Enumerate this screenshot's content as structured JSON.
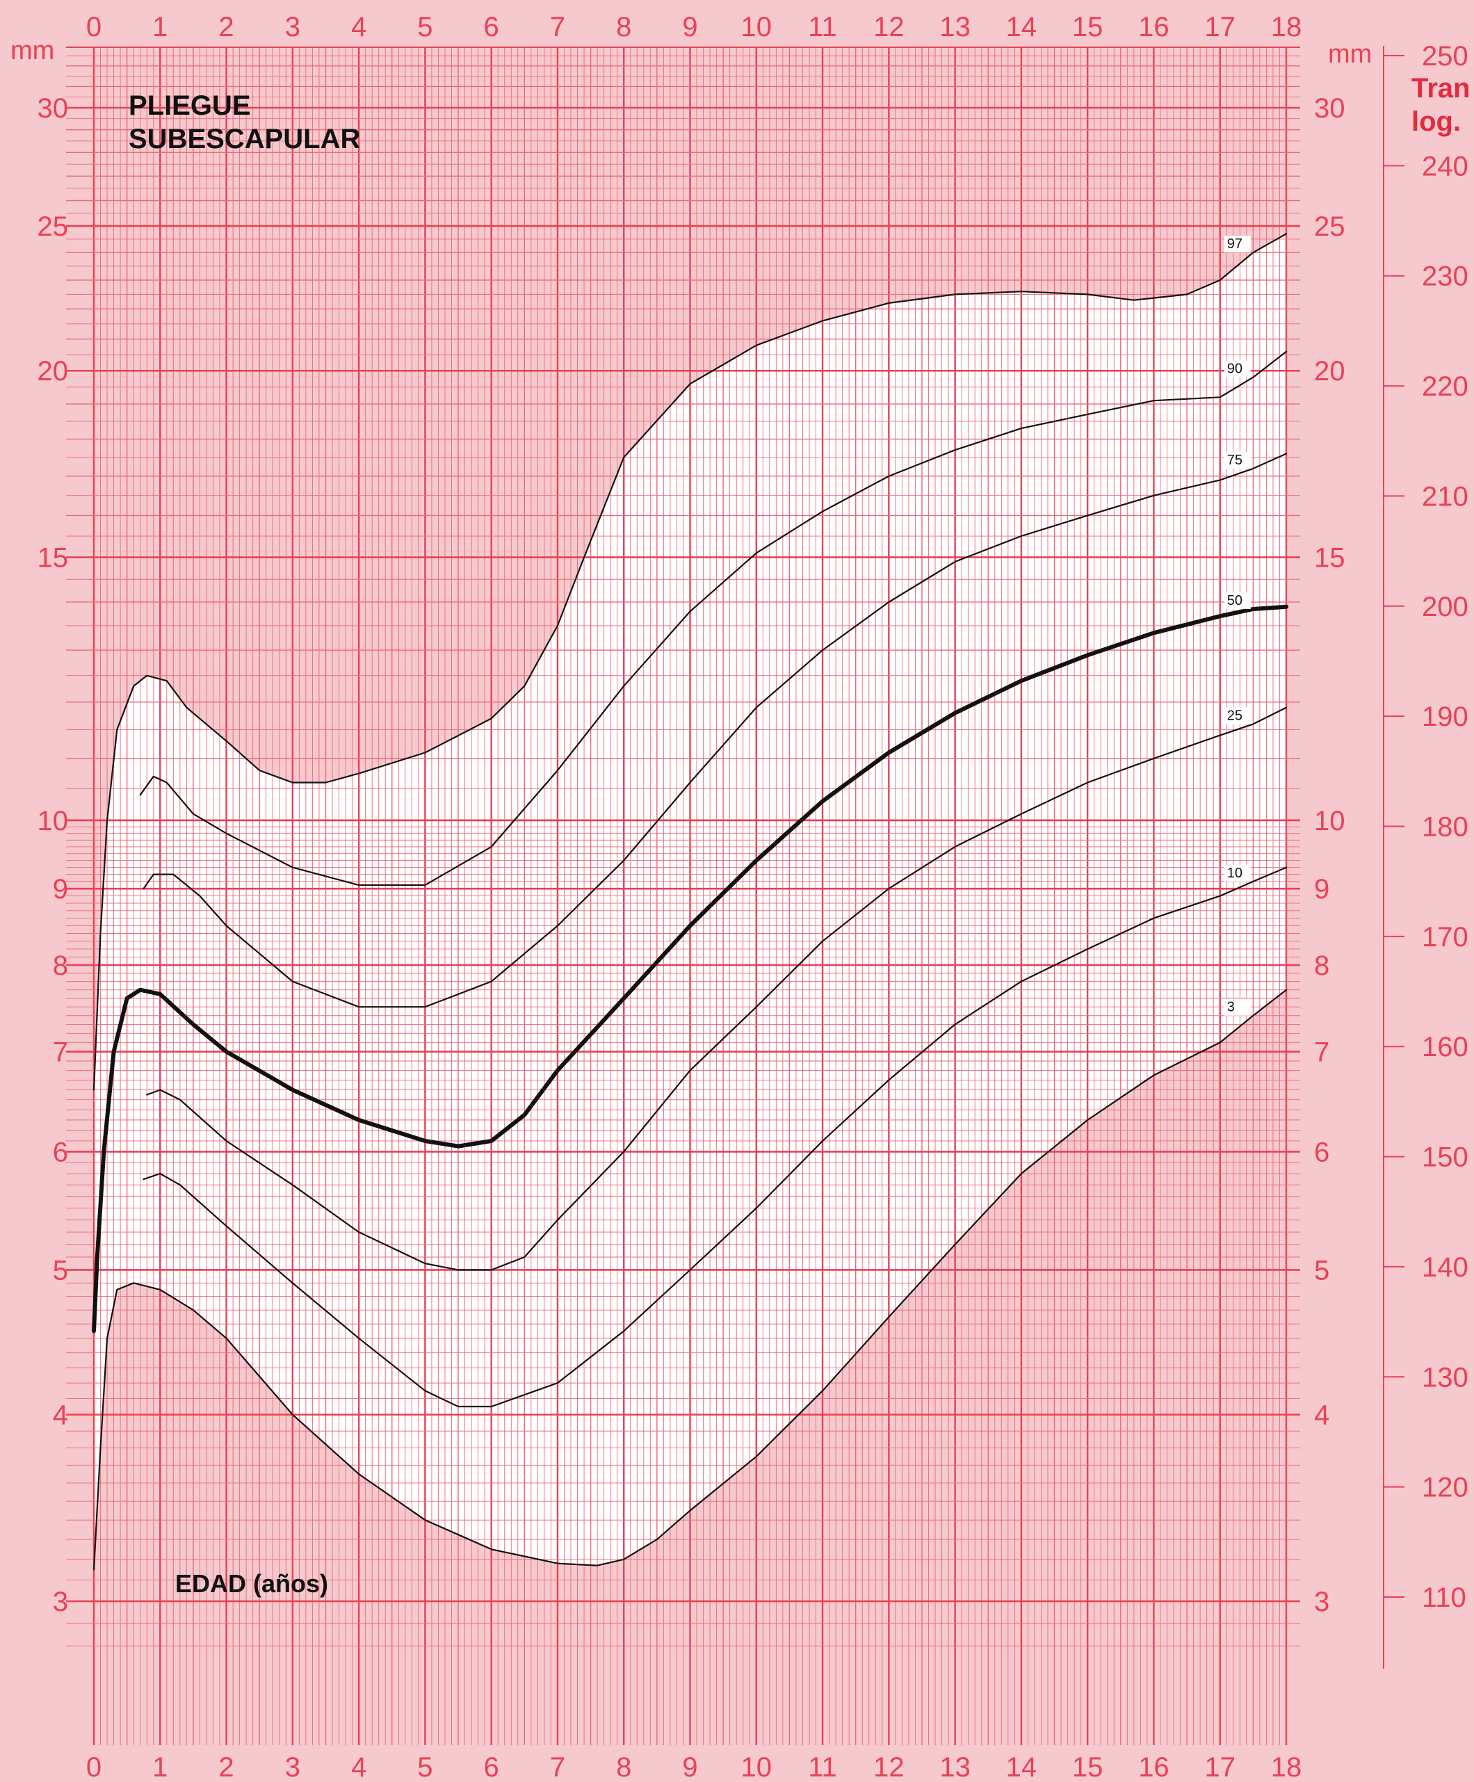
{
  "chart_data": {
    "type": "line",
    "title": "PLIEGUE\nSUBESCAPULAR",
    "xlabel": "EDAD (años)",
    "ylabel": "mm",
    "right_ylabel": "mm",
    "log_title": "Tran\nlog.",
    "y_scale": "log",
    "xlim": [
      0,
      18
    ],
    "ylim": [
      2.7,
      33
    ],
    "x_ticks": [
      "0",
      "1",
      "2",
      "3",
      "4",
      "5",
      "6",
      "7",
      "8",
      "9",
      "10",
      "11",
      "12",
      "13",
      "14",
      "15",
      "16",
      "17",
      "18"
    ],
    "y_ticks": [
      {
        "v": 30,
        "label": "30"
      },
      {
        "v": 25,
        "label": "25"
      },
      {
        "v": 20,
        "label": "20"
      },
      {
        "v": 15,
        "label": "15"
      },
      {
        "v": 10,
        "label": "10"
      },
      {
        "v": 9,
        "label": "9"
      },
      {
        "v": 8,
        "label": "8"
      },
      {
        "v": 7,
        "label": "7"
      },
      {
        "v": 6,
        "label": "6"
      },
      {
        "v": 5,
        "label": "5"
      },
      {
        "v": 4,
        "label": "4"
      },
      {
        "v": 3,
        "label": "3"
      }
    ],
    "log_scale_ticks": [
      {
        "v": 250,
        "label": "250"
      },
      {
        "v": 240,
        "label": "240"
      },
      {
        "v": 230,
        "label": "230"
      },
      {
        "v": 220,
        "label": "220"
      },
      {
        "v": 210,
        "label": "210"
      },
      {
        "v": 200,
        "label": "200"
      },
      {
        "v": 190,
        "label": "190"
      },
      {
        "v": 180,
        "label": "180"
      },
      {
        "v": 170,
        "label": "170"
      },
      {
        "v": 160,
        "label": "160"
      },
      {
        "v": 150,
        "label": "150"
      },
      {
        "v": 140,
        "label": "140"
      },
      {
        "v": 130,
        "label": "130"
      },
      {
        "v": 120,
        "label": "120"
      },
      {
        "v": 110,
        "label": "110"
      }
    ],
    "series": [
      {
        "name": "97",
        "bold": false,
        "points": [
          [
            0,
            6.6
          ],
          [
            0.1,
            8.4
          ],
          [
            0.2,
            10.0
          ],
          [
            0.35,
            11.5
          ],
          [
            0.6,
            12.3
          ],
          [
            0.8,
            12.5
          ],
          [
            1.1,
            12.4
          ],
          [
            1.4,
            11.9
          ],
          [
            2,
            11.3
          ],
          [
            2.5,
            10.8
          ],
          [
            3,
            10.6
          ],
          [
            3.5,
            10.6
          ],
          [
            4,
            10.75
          ],
          [
            5,
            11.1
          ],
          [
            6,
            11.7
          ],
          [
            6.5,
            12.3
          ],
          [
            7,
            13.5
          ],
          [
            7.4,
            15.0
          ],
          [
            8,
            17.5
          ],
          [
            9,
            19.6
          ],
          [
            10,
            20.8
          ],
          [
            11,
            21.6
          ],
          [
            12,
            22.2
          ],
          [
            13,
            22.5
          ],
          [
            14,
            22.6
          ],
          [
            15,
            22.5
          ],
          [
            15.7,
            22.3
          ],
          [
            16.5,
            22.5
          ],
          [
            17,
            23.0
          ],
          [
            17.5,
            24.0
          ],
          [
            18,
            24.7
          ]
        ]
      },
      {
        "name": "90",
        "bold": false,
        "points": [
          [
            0.7,
            10.4
          ],
          [
            0.9,
            10.7
          ],
          [
            1.1,
            10.6
          ],
          [
            1.5,
            10.1
          ],
          [
            2,
            9.8
          ],
          [
            3,
            9.3
          ],
          [
            4,
            9.05
          ],
          [
            5,
            9.05
          ],
          [
            6,
            9.6
          ],
          [
            7,
            10.8
          ],
          [
            8,
            12.3
          ],
          [
            9,
            13.8
          ],
          [
            10,
            15.1
          ],
          [
            11,
            16.1
          ],
          [
            12,
            17.0
          ],
          [
            13,
            17.7
          ],
          [
            14,
            18.3
          ],
          [
            15,
            18.7
          ],
          [
            16,
            19.1
          ],
          [
            17,
            19.2
          ],
          [
            17.5,
            19.8
          ],
          [
            18,
            20.6
          ]
        ]
      },
      {
        "name": "75",
        "bold": false,
        "points": [
          [
            0.75,
            9.0
          ],
          [
            0.9,
            9.2
          ],
          [
            1.2,
            9.2
          ],
          [
            1.6,
            8.9
          ],
          [
            2,
            8.5
          ],
          [
            3,
            7.8
          ],
          [
            4,
            7.5
          ],
          [
            5,
            7.5
          ],
          [
            6,
            7.8
          ],
          [
            7,
            8.5
          ],
          [
            8,
            9.4
          ],
          [
            9,
            10.6
          ],
          [
            10,
            11.9
          ],
          [
            11,
            13.0
          ],
          [
            12,
            14.0
          ],
          [
            13,
            14.9
          ],
          [
            14,
            15.5
          ],
          [
            15,
            16.0
          ],
          [
            16,
            16.5
          ],
          [
            17,
            16.9
          ],
          [
            17.5,
            17.2
          ],
          [
            18,
            17.6
          ]
        ]
      },
      {
        "name": "50",
        "bold": true,
        "points": [
          [
            0,
            4.55
          ],
          [
            0.05,
            5.1
          ],
          [
            0.15,
            6.0
          ],
          [
            0.3,
            7.0
          ],
          [
            0.5,
            7.6
          ],
          [
            0.7,
            7.7
          ],
          [
            1,
            7.65
          ],
          [
            1.5,
            7.3
          ],
          [
            2,
            7.0
          ],
          [
            3,
            6.6
          ],
          [
            4,
            6.3
          ],
          [
            5,
            6.1
          ],
          [
            5.5,
            6.05
          ],
          [
            6,
            6.1
          ],
          [
            6.5,
            6.35
          ],
          [
            7,
            6.8
          ],
          [
            8,
            7.6
          ],
          [
            9,
            8.5
          ],
          [
            10,
            9.4
          ],
          [
            11,
            10.3
          ],
          [
            12,
            11.1
          ],
          [
            13,
            11.8
          ],
          [
            14,
            12.4
          ],
          [
            15,
            12.9
          ],
          [
            16,
            13.35
          ],
          [
            17,
            13.7
          ],
          [
            17.5,
            13.85
          ],
          [
            18,
            13.9
          ]
        ]
      },
      {
        "name": "25",
        "bold": false,
        "points": [
          [
            0.8,
            6.55
          ],
          [
            1,
            6.6
          ],
          [
            1.3,
            6.5
          ],
          [
            2,
            6.1
          ],
          [
            3,
            5.7
          ],
          [
            4,
            5.3
          ],
          [
            5,
            5.05
          ],
          [
            5.5,
            5.0
          ],
          [
            6,
            5.0
          ],
          [
            6.5,
            5.1
          ],
          [
            7,
            5.4
          ],
          [
            8,
            6.0
          ],
          [
            9,
            6.8
          ],
          [
            10,
            7.5
          ],
          [
            11,
            8.3
          ],
          [
            12,
            9.0
          ],
          [
            13,
            9.6
          ],
          [
            14,
            10.1
          ],
          [
            15,
            10.6
          ],
          [
            16,
            11.0
          ],
          [
            17,
            11.4
          ],
          [
            17.5,
            11.6
          ],
          [
            18,
            11.9
          ]
        ]
      },
      {
        "name": "10",
        "bold": false,
        "points": [
          [
            0.75,
            5.75
          ],
          [
            1,
            5.8
          ],
          [
            1.3,
            5.7
          ],
          [
            2,
            5.35
          ],
          [
            3,
            4.9
          ],
          [
            4,
            4.5
          ],
          [
            5,
            4.15
          ],
          [
            5.5,
            4.05
          ],
          [
            6,
            4.05
          ],
          [
            7,
            4.2
          ],
          [
            8,
            4.55
          ],
          [
            9,
            5.0
          ],
          [
            10,
            5.5
          ],
          [
            11,
            6.1
          ],
          [
            12,
            6.7
          ],
          [
            13,
            7.3
          ],
          [
            14,
            7.8
          ],
          [
            15,
            8.2
          ],
          [
            16,
            8.6
          ],
          [
            17,
            8.9
          ],
          [
            17.5,
            9.1
          ],
          [
            18,
            9.3
          ]
        ]
      },
      {
        "name": "3",
        "bold": false,
        "points": [
          [
            0,
            3.15
          ],
          [
            0.1,
            3.8
          ],
          [
            0.2,
            4.5
          ],
          [
            0.35,
            4.85
          ],
          [
            0.6,
            4.9
          ],
          [
            1,
            4.85
          ],
          [
            1.5,
            4.7
          ],
          [
            2,
            4.5
          ],
          [
            3,
            4.0
          ],
          [
            4,
            3.65
          ],
          [
            5,
            3.4
          ],
          [
            6,
            3.25
          ],
          [
            7,
            3.18
          ],
          [
            7.6,
            3.17
          ],
          [
            8,
            3.2
          ],
          [
            8.5,
            3.3
          ],
          [
            9,
            3.45
          ],
          [
            10,
            3.75
          ],
          [
            11,
            4.15
          ],
          [
            12,
            4.65
          ],
          [
            13,
            5.2
          ],
          [
            14,
            5.8
          ],
          [
            15,
            6.3
          ],
          [
            16,
            6.75
          ],
          [
            17,
            7.1
          ],
          [
            17.5,
            7.4
          ],
          [
            18,
            7.7
          ]
        ]
      }
    ]
  },
  "colors": {
    "background": "#f5c9cd",
    "grid_major": "#e94156",
    "grid_minor": "#ec6a7a",
    "band": "#ffffff",
    "curve": "#111111",
    "label": "#e94156"
  }
}
